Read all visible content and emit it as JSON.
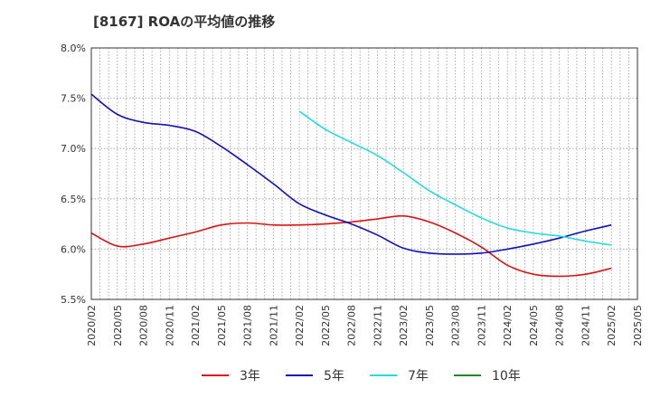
{
  "chart_data": {
    "type": "line",
    "title": "[8167]  ROAの平均値の推移",
    "xlabel": "",
    "ylabel": "",
    "x": [
      "2020/02",
      "2020/05",
      "2020/08",
      "2020/11",
      "2021/02",
      "2021/05",
      "2021/08",
      "2021/11",
      "2022/02",
      "2022/05",
      "2022/08",
      "2022/11",
      "2023/02",
      "2023/05",
      "2023/08",
      "2023/11",
      "2024/02",
      "2024/05",
      "2024/08",
      "2024/11",
      "2025/02",
      "2025/05"
    ],
    "y_ticks": [
      "5.5%",
      "6.0%",
      "6.5%",
      "7.0%",
      "7.5%",
      "8.0%"
    ],
    "ylim": [
      5.5,
      8.0
    ],
    "grid": true,
    "legend_position": "bottom",
    "series": [
      {
        "name": "3年",
        "color": "#dd1111",
        "values": [
          6.16,
          6.03,
          6.05,
          6.11,
          6.17,
          6.24,
          6.26,
          6.24,
          6.24,
          6.25,
          6.27,
          6.3,
          6.33,
          6.27,
          6.16,
          6.02,
          5.84,
          5.75,
          5.73,
          5.75,
          5.81,
          null
        ]
      },
      {
        "name": "5年",
        "color": "#1111bb",
        "values": [
          7.54,
          7.34,
          7.26,
          7.23,
          7.17,
          7.02,
          6.84,
          6.65,
          6.45,
          6.34,
          6.25,
          6.14,
          6.01,
          5.96,
          5.95,
          5.96,
          6.0,
          6.05,
          6.11,
          6.18,
          6.24,
          null
        ]
      },
      {
        "name": "7年",
        "color": "#22dddd",
        "values": [
          null,
          null,
          null,
          null,
          null,
          null,
          null,
          null,
          7.37,
          7.19,
          7.06,
          6.93,
          6.76,
          6.58,
          6.44,
          6.31,
          6.21,
          6.16,
          6.13,
          6.08,
          6.04,
          null
        ]
      },
      {
        "name": "10年",
        "color": "#228822",
        "values": [
          null,
          null,
          null,
          null,
          null,
          null,
          null,
          null,
          null,
          null,
          null,
          null,
          null,
          null,
          null,
          null,
          null,
          null,
          null,
          null,
          null,
          null
        ]
      }
    ]
  }
}
